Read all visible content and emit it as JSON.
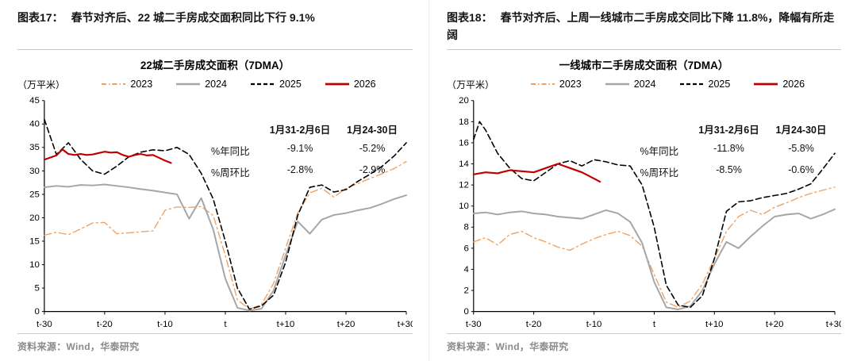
{
  "figures": [
    {
      "caption_label": "图表17：",
      "caption_text": "春节对齐后、22 城二手房成交面积同比下行 9.1%",
      "annotation": {
        "col_headers": [
          "1月31-2月6日",
          "1月24-30日"
        ],
        "rows": [
          {
            "label": "%年同比",
            "v1": "-9.1%",
            "v2": "-5.2%"
          },
          {
            "label": "%周环比",
            "v1": "-2.8%",
            "v2": "-2.9%"
          }
        ]
      },
      "source": "资料来源：Wind，华泰研究"
    },
    {
      "caption_label": "图表18：",
      "caption_text": "春节对齐后、上周一线城市二手房成交同比下降 11.8%，降幅有所走阔",
      "annotation": {
        "col_headers": [
          "1月31-2月6日",
          "1月24-30日"
        ],
        "rows": [
          {
            "label": "%年同比",
            "v1": "-11.8%",
            "v2": "-5.8%"
          },
          {
            "label": "%周环比",
            "v1": "-8.5%",
            "v2": "-0.6%"
          }
        ]
      },
      "source": "资料来源：Wind，华泰研究"
    }
  ],
  "chart_data": [
    {
      "type": "line",
      "title": "22城二手房成交面积（7DMA）",
      "ylabel": "（万平米）",
      "ylim": [
        0,
        45
      ],
      "ytick_step": 5,
      "x_range": [
        -30,
        30
      ],
      "xticks": [
        -30,
        -20,
        -10,
        0,
        10,
        20,
        30
      ],
      "xtick_labels": [
        "t-30",
        "t-20",
        "t-10",
        "t",
        "t+10",
        "t+20",
        "t+30"
      ],
      "grid": false,
      "legend_position": "top",
      "x": [
        -30,
        -28,
        -26,
        -24,
        -22,
        -20,
        -18,
        -16,
        -14,
        -12,
        -10,
        -8,
        -6,
        -4,
        -2,
        0,
        2,
        4,
        6,
        8,
        10,
        12,
        14,
        16,
        18,
        20,
        22,
        24,
        26,
        28,
        30
      ],
      "series": [
        {
          "name": "2023",
          "color": "#f0a160",
          "style": "dashdot",
          "width": 1.4,
          "y": [
            16.3,
            16.9,
            16.4,
            17.6,
            18.9,
            19.0,
            16.6,
            16.8,
            17.0,
            17.2,
            21.6,
            22.3,
            22.2,
            22.4,
            20.5,
            12.0,
            2.5,
            0.5,
            1.5,
            6.0,
            13.5,
            21.0,
            25.3,
            26.3,
            24.4,
            26.3,
            27.3,
            28.4,
            29.4,
            30.5,
            32.0
          ]
        },
        {
          "name": "2024",
          "color": "#a6a6a6",
          "style": "solid",
          "width": 2,
          "y": [
            26.5,
            26.8,
            26.6,
            27.0,
            26.9,
            27.1,
            26.8,
            26.5,
            26.1,
            25.8,
            25.4,
            25.0,
            19.8,
            24.2,
            17.5,
            7.0,
            0.8,
            0.2,
            0.6,
            4.5,
            12.0,
            19.2,
            16.6,
            19.6,
            20.6,
            21.0,
            21.6,
            22.1,
            23.0,
            24.0,
            24.8
          ]
        },
        {
          "name": "2025",
          "color": "#000000",
          "style": "dashed",
          "width": 1.6,
          "y": [
            41.0,
            33.5,
            36.0,
            32.5,
            30.0,
            29.3,
            31.0,
            33.0,
            34.0,
            34.5,
            34.3,
            35.0,
            33.5,
            29.5,
            24.0,
            15.0,
            5.0,
            0.5,
            1.2,
            3.5,
            10.5,
            20.5,
            26.5,
            27.0,
            25.5,
            26.0,
            27.8,
            29.3,
            31.0,
            33.2,
            36.0
          ]
        },
        {
          "name": "2026",
          "color": "#c00000",
          "style": "solid",
          "width": 2.2,
          "x": [
            -30,
            -28,
            -27,
            -26,
            -25,
            -24,
            -23,
            -22,
            -21,
            -20,
            -19,
            -18,
            -17,
            -16,
            -15,
            -14,
            -13,
            -12,
            -11,
            -10,
            -9
          ],
          "y": [
            32.4,
            33.3,
            34.6,
            33.6,
            33.4,
            33.6,
            33.4,
            33.5,
            33.8,
            34.1,
            33.9,
            34.0,
            33.4,
            33.0,
            33.4,
            33.6,
            33.3,
            33.4,
            32.8,
            32.2,
            31.7
          ]
        }
      ]
    },
    {
      "type": "line",
      "title": "一线城市二手房成交面积（7DMA）",
      "ylabel": "（万平米）",
      "ylim": [
        0,
        20
      ],
      "ytick_step": 2,
      "x_range": [
        -30,
        30
      ],
      "xticks": [
        -30,
        -20,
        -10,
        0,
        10,
        20,
        30
      ],
      "xtick_labels": [
        "t-30",
        "t-20",
        "t-10",
        "t",
        "t+10",
        "t+20",
        "t+30"
      ],
      "grid": false,
      "legend_position": "top",
      "x": [
        -30,
        -28,
        -26,
        -24,
        -22,
        -20,
        -18,
        -16,
        -14,
        -12,
        -10,
        -8,
        -6,
        -4,
        -2,
        0,
        2,
        4,
        6,
        8,
        10,
        12,
        14,
        16,
        18,
        20,
        22,
        24,
        26,
        28,
        30
      ],
      "series": [
        {
          "name": "2023",
          "color": "#f0a160",
          "style": "dashdot",
          "width": 1.4,
          "y": [
            6.6,
            7.0,
            6.3,
            7.3,
            7.6,
            7.0,
            6.6,
            6.1,
            5.8,
            6.4,
            6.9,
            7.3,
            7.6,
            7.2,
            6.2,
            3.5,
            0.9,
            0.4,
            1.0,
            2.6,
            5.0,
            7.6,
            9.0,
            9.6,
            9.2,
            9.9,
            10.3,
            10.8,
            11.2,
            11.5,
            11.8
          ]
        },
        {
          "name": "2024",
          "color": "#a6a6a6",
          "style": "solid",
          "width": 2,
          "y": [
            9.3,
            9.4,
            9.2,
            9.4,
            9.5,
            9.3,
            9.2,
            9.0,
            8.9,
            8.8,
            9.2,
            9.6,
            9.3,
            8.5,
            6.5,
            2.8,
            0.4,
            0.2,
            0.5,
            2.0,
            4.5,
            6.6,
            6.0,
            7.1,
            8.1,
            9.0,
            9.2,
            9.3,
            8.8,
            9.2,
            9.7
          ]
        },
        {
          "name": "2025",
          "color": "#000000",
          "style": "dashed",
          "width": 1.6,
          "x": [
            -30,
            -29,
            -28,
            -26,
            -24,
            -22,
            -20,
            -18,
            -16,
            -14,
            -12,
            -10,
            -8,
            -6,
            -4,
            -2,
            0,
            2,
            4,
            6,
            8,
            10,
            12,
            14,
            16,
            18,
            20,
            22,
            24,
            26,
            28,
            30
          ],
          "y": [
            16.3,
            18.0,
            17.2,
            15.0,
            13.6,
            12.6,
            12.4,
            13.2,
            14.0,
            14.3,
            13.8,
            14.4,
            14.2,
            13.9,
            13.8,
            12.0,
            8.0,
            2.5,
            0.6,
            0.4,
            1.5,
            5.0,
            9.5,
            10.4,
            10.5,
            10.8,
            11.0,
            11.2,
            11.6,
            12.1,
            13.5,
            15.0
          ]
        },
        {
          "name": "2026",
          "color": "#c00000",
          "style": "solid",
          "width": 2.2,
          "x": [
            -30,
            -28,
            -26,
            -24,
            -22,
            -20,
            -18,
            -16,
            -15,
            -14,
            -12,
            -10,
            -9
          ],
          "y": [
            13.0,
            13.2,
            13.1,
            13.4,
            13.3,
            13.2,
            13.6,
            14.0,
            13.8,
            13.6,
            13.2,
            12.6,
            12.3
          ]
        }
      ]
    }
  ]
}
